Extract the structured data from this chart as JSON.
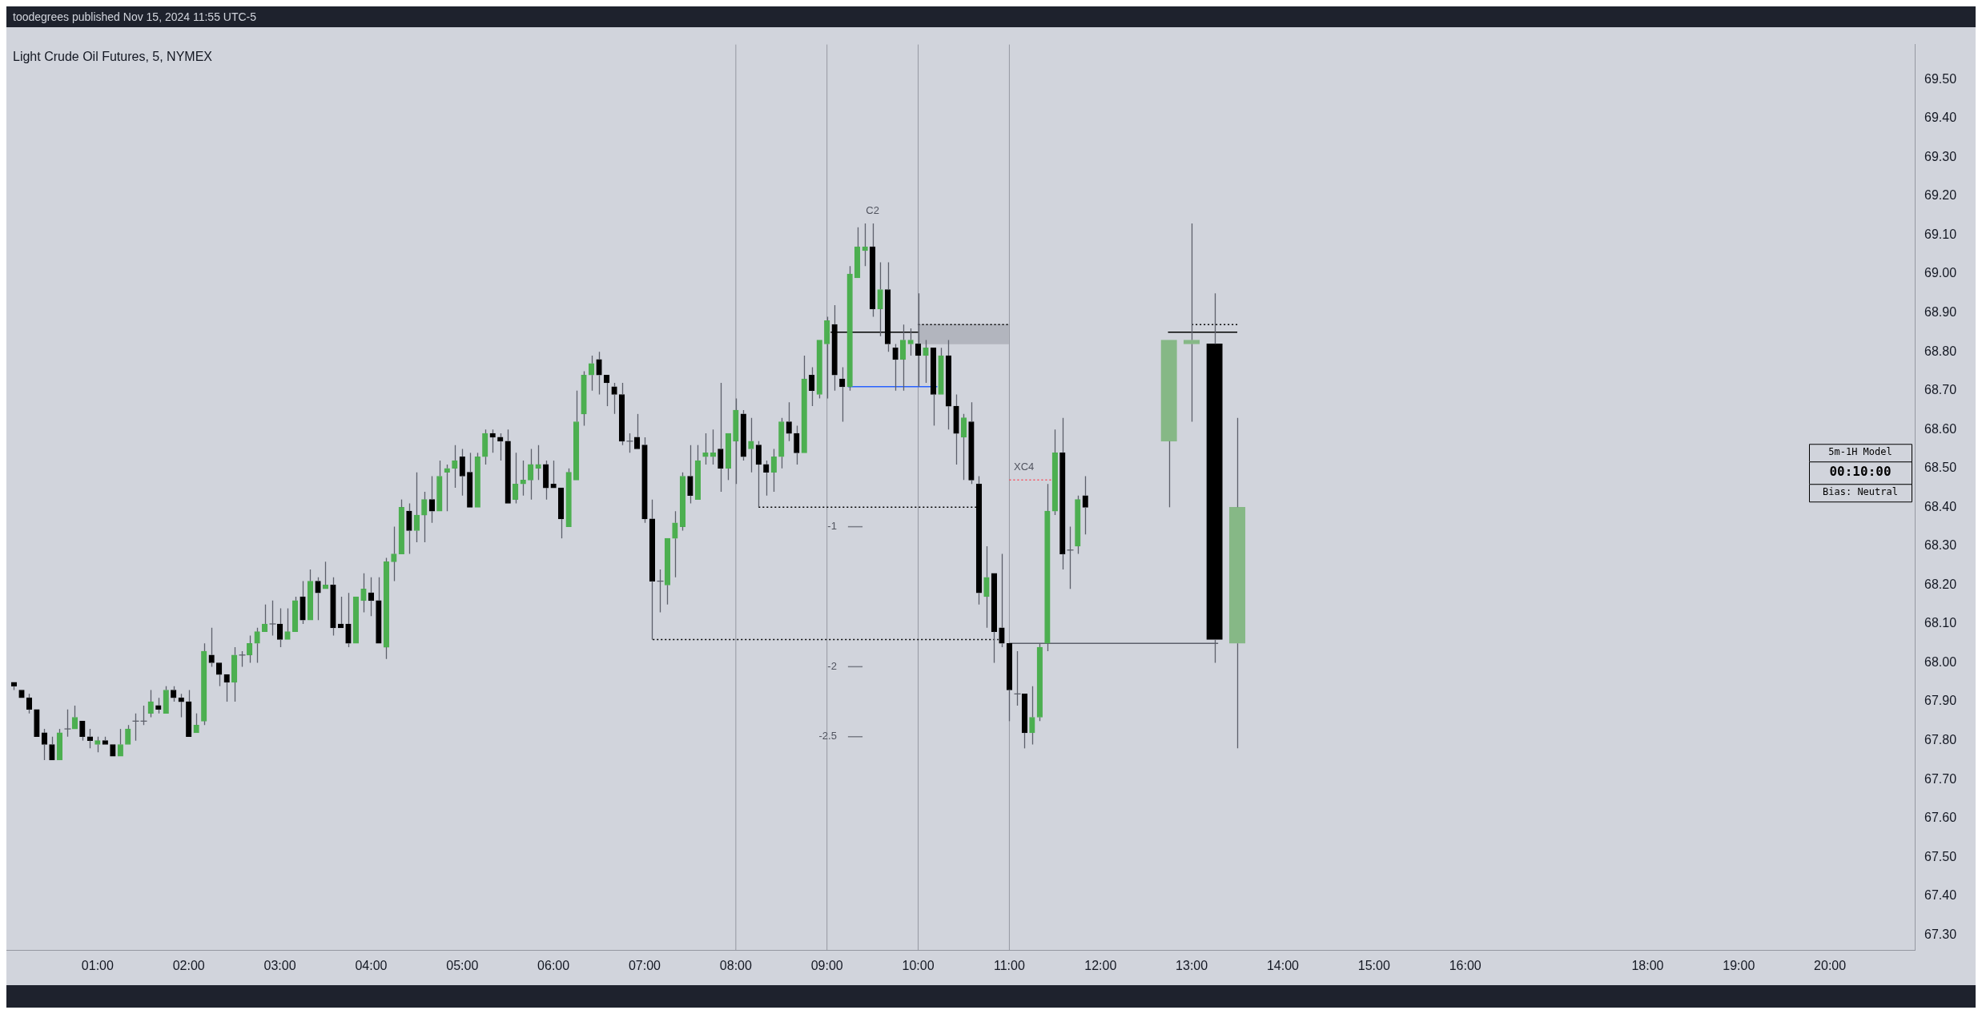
{
  "chart_data": {
    "type": "candlestick",
    "title": "Light Crude Oil Futures, 5, NYMEX",
    "annotations": [
      "toodegrees published Nov 15, 2024 11:55 UTC-5",
      "5m-1H Model",
      "00:10:00",
      "Bias: Neutral",
      {
        "text": "C2",
        "x": 9.5,
        "y": 69.13
      },
      {
        "text": "XC4",
        "x": 11.16,
        "y": 68.47
      },
      {
        "text": "-1",
        "x": 9.23,
        "y": 68.35
      },
      {
        "text": "-2",
        "x": 9.23,
        "y": 67.99
      },
      {
        "text": "-2.5",
        "x": 9.23,
        "y": 67.81
      }
    ],
    "xlim": [
      0,
      20.93
    ],
    "ylim": [
      67.26,
      69.59
    ],
    "xticks": [
      {
        "value": 1,
        "label": "01:00"
      },
      {
        "value": 2,
        "label": "02:00"
      },
      {
        "value": 3,
        "label": "03:00"
      },
      {
        "value": 4,
        "label": "04:00"
      },
      {
        "value": 5,
        "label": "05:00"
      },
      {
        "value": 6,
        "label": "06:00"
      },
      {
        "value": 7,
        "label": "07:00"
      },
      {
        "value": 8,
        "label": "08:00"
      },
      {
        "value": 9,
        "label": "09:00"
      },
      {
        "value": 10,
        "label": "10:00"
      },
      {
        "value": 11,
        "label": "11:00"
      },
      {
        "value": 12,
        "label": "12:00"
      },
      {
        "value": 13,
        "label": "13:00"
      },
      {
        "value": 14,
        "label": "14:00"
      },
      {
        "value": 15,
        "label": "15:00"
      },
      {
        "value": 16,
        "label": "16:00"
      },
      {
        "value": 18,
        "label": "18:00"
      },
      {
        "value": 19,
        "label": "19:00"
      },
      {
        "value": 20,
        "label": "20:00"
      }
    ],
    "yticks": [
      {
        "value": 67.3,
        "label": "67.30"
      },
      {
        "value": 67.4,
        "label": "67.40"
      },
      {
        "value": 67.5,
        "label": "67.50"
      },
      {
        "value": 67.6,
        "label": "67.60"
      },
      {
        "value": 67.7,
        "label": "67.70"
      },
      {
        "value": 67.8,
        "label": "67.80"
      },
      {
        "value": 67.9,
        "label": "67.90"
      },
      {
        "value": 68,
        "label": "68.00"
      },
      {
        "value": 68.1,
        "label": "68.10"
      },
      {
        "value": 68.2,
        "label": "68.20"
      },
      {
        "value": 68.3,
        "label": "68.30"
      },
      {
        "value": 68.4,
        "label": "68.40"
      },
      {
        "value": 68.5,
        "label": "68.50"
      },
      {
        "value": 68.6,
        "label": "68.60"
      },
      {
        "value": 68.7,
        "label": "68.70"
      },
      {
        "value": 68.8,
        "label": "68.80"
      },
      {
        "value": 68.9,
        "label": "68.90"
      },
      {
        "value": 69,
        "label": "69.00"
      },
      {
        "value": 69.1,
        "label": "69.10"
      },
      {
        "value": 69.2,
        "label": "69.20"
      },
      {
        "value": 69.3,
        "label": "69.30"
      },
      {
        "value": 69.4,
        "label": "69.40"
      },
      {
        "value": 69.5,
        "label": "69.50"
      }
    ],
    "grid": false,
    "legend": false,
    "ref_lines": [
      {
        "axis": "x",
        "value": 8,
        "color": "#9598a1"
      },
      {
        "axis": "x",
        "value": 9,
        "color": "#9598a1"
      },
      {
        "axis": "x",
        "value": 10,
        "color": "#9598a1"
      },
      {
        "axis": "x",
        "value": 11,
        "color": "#9598a1"
      }
    ],
    "series": [
      {
        "type": "bar",
        "x": [
          10.5
        ],
        "base": [
          68.82
        ],
        "values": [
          0.05
        ],
        "color": "#b2b5be"
      },
      {
        "type": "line",
        "x": [
          10,
          11
        ],
        "values": [
          68.87,
          68.87
        ],
        "color": "#000000",
        "line_style": "dotted"
      },
      {
        "type": "line",
        "x": [
          9.04,
          10
        ],
        "values": [
          68.85,
          68.85
        ],
        "color": "#000000",
        "line_style": "solid"
      },
      {
        "type": "line",
        "x": [
          9.23,
          10.21
        ],
        "values": [
          68.71,
          68.71
        ],
        "color": "#2962ff",
        "line_style": "solid"
      },
      {
        "type": "line",
        "x": [
          8.25,
          10.7
        ],
        "values": [
          68.4,
          68.4
        ],
        "color": "#000000",
        "line_style": "dotted"
      },
      {
        "type": "line",
        "x": [
          7.09,
          10.88
        ],
        "values": [
          68.06,
          68.06
        ],
        "color": "#000000",
        "line_style": "dotted"
      },
      {
        "type": "line",
        "x": [
          11,
          13.29
        ],
        "values": [
          68.05,
          68.05
        ],
        "color": "#5d606b",
        "line_style": "solid"
      },
      {
        "type": "line",
        "x": [
          11,
          11.46
        ],
        "values": [
          68.47,
          68.47
        ],
        "color": "#f7525f",
        "line_style": "dotted"
      },
      {
        "type": "line",
        "x": [
          12.74,
          13.5
        ],
        "values": [
          68.85,
          68.85
        ],
        "color": "#000000",
        "line_style": "solid"
      },
      {
        "type": "line",
        "x": [
          13,
          13.5
        ],
        "values": [
          68.87,
          68.87
        ],
        "color": "#000000",
        "line_style": "dotted"
      },
      {
        "type": "line",
        "x": [
          9.23,
          9.39
        ],
        "values": [
          68.35,
          68.35
        ],
        "color": "#787b86",
        "line_style": "solid"
      },
      {
        "type": "line",
        "x": [
          9.23,
          9.39
        ],
        "values": [
          67.99,
          67.99
        ],
        "color": "#787b86",
        "line_style": "solid"
      },
      {
        "type": "line",
        "x": [
          9.23,
          9.39
        ],
        "values": [
          67.81,
          67.81
        ],
        "color": "#787b86",
        "line_style": "solid"
      },
      {
        "type": "candlestick",
        "color": "#5d606b",
        "x": [
          0.083,
          0.167,
          0.25,
          0.333,
          0.417,
          0.5,
          0.583,
          0.667,
          0.75,
          0.833,
          0.917,
          1,
          1.083,
          1.167,
          1.25,
          1.333,
          1.417,
          1.5,
          1.583,
          1.667,
          1.75,
          1.833,
          1.917,
          2,
          2.083,
          2.167,
          2.25,
          2.333,
          2.417,
          2.5,
          2.583,
          2.667,
          2.75,
          2.833,
          2.917,
          3,
          3.083,
          3.167,
          3.25,
          3.333,
          3.417,
          3.5,
          3.583,
          3.667,
          3.75,
          3.833,
          3.917,
          4,
          4.083,
          4.167,
          4.25,
          4.333,
          4.417,
          4.5,
          4.583,
          4.667,
          4.75,
          4.833,
          4.917,
          5,
          5.083,
          5.167,
          5.25,
          5.333,
          5.417,
          5.5,
          5.583,
          5.667,
          5.75,
          5.833,
          5.917,
          6,
          6.083,
          6.167,
          6.25,
          6.333,
          6.417,
          6.5,
          6.583,
          6.667,
          6.75,
          6.833,
          6.917,
          7,
          7.083,
          7.167,
          7.25,
          7.333,
          7.417,
          7.5,
          7.583,
          7.667,
          7.75,
          7.833,
          7.917,
          8,
          8.083,
          8.167,
          8.25,
          8.333,
          8.417,
          8.5,
          8.583,
          8.667,
          8.75,
          8.833,
          8.917,
          9,
          9.083,
          9.167,
          9.25,
          9.333,
          9.417,
          9.5,
          9.583,
          9.667,
          9.75,
          9.833,
          9.917,
          10,
          10.083,
          10.167,
          10.25,
          10.333,
          10.417,
          10.5,
          10.583,
          10.667,
          10.75,
          10.833,
          10.917,
          11,
          11.083,
          11.167,
          11.25,
          11.333,
          11.417,
          11.5,
          11.583,
          11.667,
          11.75,
          11.833
        ],
        "ohlc": [
          [
            67.95,
            67.95,
            67.93,
            67.94
          ],
          [
            67.93,
            67.93,
            67.91,
            67.91
          ],
          [
            67.91,
            67.92,
            67.87,
            67.88
          ],
          [
            67.88,
            67.88,
            67.81,
            67.81
          ],
          [
            67.82,
            67.83,
            67.75,
            67.79
          ],
          [
            67.79,
            67.81,
            67.75,
            67.75
          ],
          [
            67.75,
            67.83,
            67.75,
            67.82
          ],
          [
            67.83,
            67.88,
            67.81,
            67.83
          ],
          [
            67.83,
            67.89,
            67.83,
            67.86
          ],
          [
            67.85,
            67.85,
            67.8,
            67.81
          ],
          [
            67.81,
            67.83,
            67.78,
            67.8
          ],
          [
            67.79,
            67.81,
            67.77,
            67.8
          ],
          [
            67.8,
            67.81,
            67.79,
            67.79
          ],
          [
            67.79,
            67.79,
            67.76,
            67.76
          ],
          [
            67.76,
            67.83,
            67.76,
            67.79
          ],
          [
            67.79,
            67.84,
            67.79,
            67.83
          ],
          [
            67.85,
            67.87,
            67.8,
            67.85
          ],
          [
            67.85,
            67.89,
            67.84,
            67.85
          ],
          [
            67.87,
            67.93,
            67.86,
            67.9
          ],
          [
            67.89,
            67.91,
            67.87,
            67.88
          ],
          [
            67.87,
            67.94,
            67.87,
            67.93
          ],
          [
            67.93,
            67.94,
            67.9,
            67.91
          ],
          [
            67.91,
            67.92,
            67.86,
            67.9
          ],
          [
            67.9,
            67.93,
            67.81,
            67.81
          ],
          [
            67.82,
            67.87,
            67.82,
            67.84
          ],
          [
            67.85,
            68.05,
            67.84,
            68.03
          ],
          [
            68.02,
            68.09,
            67.99,
            68
          ],
          [
            68,
            68,
            67.94,
            67.97
          ],
          [
            67.97,
            67.97,
            67.9,
            67.95
          ],
          [
            67.95,
            68.04,
            67.9,
            68.02
          ],
          [
            68.02,
            68.03,
            67.99,
            68.02
          ],
          [
            68.02,
            68.07,
            68,
            68.05
          ],
          [
            68.05,
            68.09,
            68,
            68.08
          ],
          [
            68.08,
            68.15,
            68.08,
            68.1
          ],
          [
            68.1,
            68.16,
            68.07,
            68.1
          ],
          [
            68.1,
            68.14,
            68.04,
            68.06
          ],
          [
            68.06,
            68.14,
            68.06,
            68.08
          ],
          [
            68.08,
            68.17,
            68.08,
            68.16
          ],
          [
            68.17,
            68.21,
            68.1,
            68.11
          ],
          [
            68.11,
            68.24,
            68.11,
            68.21
          ],
          [
            68.21,
            68.22,
            68.11,
            68.18
          ],
          [
            68.19,
            68.26,
            68.19,
            68.2
          ],
          [
            68.2,
            68.22,
            68.07,
            68.09
          ],
          [
            68.1,
            68.17,
            68.09,
            68.09
          ],
          [
            68.1,
            68.18,
            68.04,
            68.05
          ],
          [
            68.05,
            68.17,
            68.05,
            68.17
          ],
          [
            68.16,
            68.23,
            68.13,
            68.19
          ],
          [
            68.18,
            68.22,
            68.12,
            68.16
          ],
          [
            68.16,
            68.22,
            68.05,
            68.05
          ],
          [
            68.04,
            68.27,
            68.01,
            68.26
          ],
          [
            68.26,
            68.35,
            68.21,
            68.28
          ],
          [
            68.28,
            68.42,
            68.28,
            68.4
          ],
          [
            68.39,
            68.41,
            68.28,
            68.34
          ],
          [
            68.34,
            68.49,
            68.31,
            68.38
          ],
          [
            68.38,
            68.44,
            68.31,
            68.42
          ],
          [
            68.42,
            68.48,
            68.36,
            68.39
          ],
          [
            68.39,
            68.52,
            68.39,
            68.48
          ],
          [
            68.49,
            68.51,
            68.39,
            68.5
          ],
          [
            68.5,
            68.56,
            68.45,
            68.52
          ],
          [
            68.53,
            68.55,
            68.43,
            68.48
          ],
          [
            68.49,
            68.54,
            68.4,
            68.4
          ],
          [
            68.4,
            68.54,
            68.4,
            68.53
          ],
          [
            68.53,
            68.6,
            68.51,
            68.59
          ],
          [
            68.59,
            68.6,
            68.54,
            68.58
          ],
          [
            68.58,
            68.59,
            68.52,
            68.57
          ],
          [
            68.57,
            68.6,
            68.41,
            68.41
          ],
          [
            68.42,
            68.54,
            68.41,
            68.46
          ],
          [
            68.46,
            68.52,
            68.43,
            68.47
          ],
          [
            68.47,
            68.55,
            68.42,
            68.51
          ],
          [
            68.5,
            68.56,
            68.47,
            68.51
          ],
          [
            68.51,
            68.52,
            68.42,
            68.45
          ],
          [
            68.46,
            68.52,
            68.45,
            68.45
          ],
          [
            68.45,
            68.45,
            68.32,
            68.37
          ],
          [
            68.35,
            68.5,
            68.35,
            68.49
          ],
          [
            68.47,
            68.7,
            68.47,
            68.62
          ],
          [
            68.64,
            68.75,
            68.61,
            68.74
          ],
          [
            68.74,
            68.79,
            68.7,
            68.77
          ],
          [
            68.78,
            68.8,
            68.69,
            68.74
          ],
          [
            68.74,
            68.74,
            68.66,
            68.72
          ],
          [
            68.71,
            68.72,
            68.64,
            68.69
          ],
          [
            68.69,
            68.72,
            68.56,
            68.57
          ],
          [
            68.57,
            68.59,
            68.54,
            68.57
          ],
          [
            68.58,
            68.64,
            68.55,
            68.55
          ],
          [
            68.56,
            68.58,
            68.36,
            68.37
          ],
          [
            68.37,
            68.42,
            68.06,
            68.21
          ],
          [
            68.21,
            68.24,
            68.13,
            68.21
          ],
          [
            68.2,
            68.32,
            68.15,
            68.32
          ],
          [
            68.32,
            68.39,
            68.22,
            68.36
          ],
          [
            68.35,
            68.49,
            68.34,
            68.48
          ],
          [
            68.48,
            68.56,
            68.41,
            68.43
          ],
          [
            68.42,
            68.56,
            68.42,
            68.52
          ],
          [
            68.53,
            68.59,
            68.51,
            68.54
          ],
          [
            68.53,
            68.6,
            68.51,
            68.54
          ],
          [
            68.55,
            68.72,
            68.44,
            68.5
          ],
          [
            68.5,
            68.59,
            68.47,
            68.59
          ],
          [
            68.57,
            68.68,
            68.46,
            68.65
          ],
          [
            68.64,
            68.65,
            68.52,
            68.53
          ],
          [
            68.55,
            68.63,
            68.49,
            68.57
          ],
          [
            68.56,
            68.57,
            68.4,
            68.51
          ],
          [
            68.51,
            68.52,
            68.43,
            68.49
          ],
          [
            68.49,
            68.55,
            68.44,
            68.53
          ],
          [
            68.53,
            68.63,
            68.5,
            68.62
          ],
          [
            68.62,
            68.67,
            68.57,
            68.59
          ],
          [
            68.59,
            68.61,
            68.51,
            68.54
          ],
          [
            68.54,
            68.79,
            68.54,
            68.73
          ],
          [
            68.74,
            68.76,
            68.66,
            68.7
          ],
          [
            68.69,
            68.83,
            68.68,
            68.83
          ],
          [
            68.82,
            68.89,
            68.68,
            68.88
          ],
          [
            68.87,
            68.92,
            68.7,
            68.74
          ],
          [
            68.73,
            68.76,
            68.62,
            68.71
          ],
          [
            68.71,
            69.02,
            68.7,
            69
          ],
          [
            68.99,
            69.12,
            68.99,
            69.07
          ],
          [
            69.06,
            69.13,
            69.02,
            69.07
          ],
          [
            69.07,
            69.13,
            68.89,
            68.91
          ],
          [
            68.91,
            69.03,
            68.84,
            68.96
          ],
          [
            68.96,
            69.03,
            68.8,
            68.82
          ],
          [
            68.81,
            68.82,
            68.7,
            68.78
          ],
          [
            68.78,
            68.87,
            68.7,
            68.83
          ],
          [
            68.82,
            68.86,
            68.79,
            68.83
          ],
          [
            68.82,
            68.95,
            68.71,
            68.79
          ],
          [
            68.79,
            68.83,
            68.72,
            68.81
          ],
          [
            68.81,
            68.81,
            68.61,
            68.69
          ],
          [
            68.69,
            68.81,
            68.69,
            68.79
          ],
          [
            68.79,
            68.83,
            68.6,
            68.66
          ],
          [
            68.66,
            68.69,
            68.51,
            68.59
          ],
          [
            68.58,
            68.64,
            68.47,
            68.63
          ],
          [
            68.62,
            68.67,
            68.46,
            68.47
          ],
          [
            68.46,
            68.48,
            68.15,
            68.18
          ],
          [
            68.17,
            68.3,
            68.09,
            68.22
          ],
          [
            68.23,
            68.23,
            68,
            68.08
          ],
          [
            68.09,
            68.28,
            68.04,
            68.05
          ],
          [
            68.05,
            68.05,
            67.85,
            67.93
          ],
          [
            67.92,
            68.03,
            67.89,
            67.92
          ],
          [
            67.92,
            67.92,
            67.78,
            67.82
          ],
          [
            67.82,
            67.94,
            67.79,
            67.86
          ],
          [
            67.86,
            68.05,
            67.85,
            68.04
          ],
          [
            68.05,
            68.46,
            68.03,
            68.39
          ],
          [
            68.39,
            68.6,
            68.38,
            68.54
          ],
          [
            68.54,
            68.63,
            68.24,
            68.28
          ],
          [
            68.29,
            68.35,
            68.19,
            68.29
          ],
          [
            68.3,
            68.43,
            68.28,
            68.42
          ],
          [
            68.43,
            68.48,
            68.33,
            68.4
          ]
        ],
        "colors": [
          "#000000",
          "#000000",
          "#000000",
          "#000000",
          "#000000",
          "#000000",
          "#4caf50",
          "#5d606b",
          "#4caf50",
          "#000000",
          "#000000",
          "#4caf50",
          "#000000",
          "#000000",
          "#4caf50",
          "#4caf50",
          "#5d606b",
          "#5d606b",
          "#4caf50",
          "#000000",
          "#4caf50",
          "#000000",
          "#000000",
          "#000000",
          "#4caf50",
          "#4caf50",
          "#000000",
          "#000000",
          "#000000",
          "#4caf50",
          "#5d606b",
          "#4caf50",
          "#4caf50",
          "#4caf50",
          "#5d606b",
          "#000000",
          "#4caf50",
          "#4caf50",
          "#000000",
          "#4caf50",
          "#000000",
          "#4caf50",
          "#000000",
          "#000000",
          "#000000",
          "#4caf50",
          "#4caf50",
          "#000000",
          "#000000",
          "#4caf50",
          "#4caf50",
          "#4caf50",
          "#000000",
          "#4caf50",
          "#4caf50",
          "#000000",
          "#4caf50",
          "#4caf50",
          "#4caf50",
          "#000000",
          "#000000",
          "#4caf50",
          "#4caf50",
          "#000000",
          "#000000",
          "#000000",
          "#4caf50",
          "#4caf50",
          "#4caf50",
          "#4caf50",
          "#000000",
          "#000000",
          "#000000",
          "#4caf50",
          "#4caf50",
          "#4caf50",
          "#4caf50",
          "#000000",
          "#000000",
          "#000000",
          "#000000",
          "#5d606b",
          "#000000",
          "#000000",
          "#000000",
          "#5d606b",
          "#4caf50",
          "#4caf50",
          "#4caf50",
          "#000000",
          "#4caf50",
          "#4caf50",
          "#4caf50",
          "#000000",
          "#4caf50",
          "#4caf50",
          "#000000",
          "#4caf50",
          "#000000",
          "#000000",
          "#4caf50",
          "#4caf50",
          "#000000",
          "#000000",
          "#4caf50",
          "#000000",
          "#4caf50",
          "#4caf50",
          "#000000",
          "#000000",
          "#4caf50",
          "#4caf50",
          "#4caf50",
          "#000000",
          "#4caf50",
          "#000000",
          "#000000",
          "#4caf50",
          "#4caf50",
          "#000000",
          "#4caf50",
          "#000000",
          "#4caf50",
          "#000000",
          "#000000",
          "#4caf50",
          "#000000",
          "#000000",
          "#4caf50",
          "#000000",
          "#000000",
          "#000000",
          "#5d606b",
          "#000000",
          "#4caf50",
          "#4caf50",
          "#4caf50",
          "#4caf50",
          "#000000",
          "#5d606b",
          "#4caf50",
          "#000000"
        ]
      },
      {
        "type": "candlestick",
        "color": "#5d606b",
        "x": [
          12.75,
          13,
          13.25,
          13.5
        ],
        "ohlc": [
          [
            68.57,
            68.83,
            68.4,
            68.83
          ],
          [
            68.82,
            69.13,
            68.62,
            68.83
          ],
          [
            68.82,
            68.95,
            68,
            68.06
          ],
          [
            68.05,
            68.63,
            67.78,
            68.4
          ]
        ],
        "colors": [
          "#86b886",
          "#86b886",
          "#000000",
          "#86b886"
        ]
      }
    ]
  }
}
